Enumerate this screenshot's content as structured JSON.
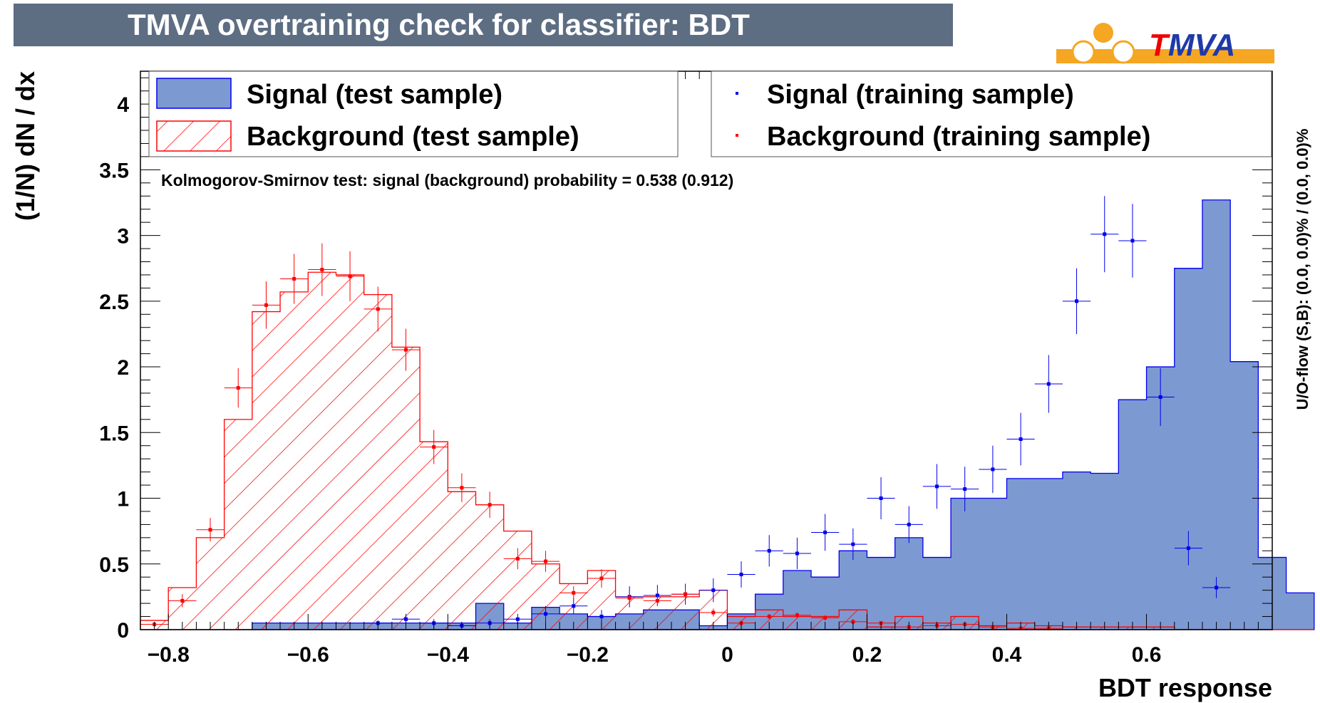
{
  "title": "TMVA overtraining check for classifier: BDT",
  "logo": {
    "prefix": "T",
    "rest": "MVA"
  },
  "colors": {
    "title_bg": "#5d6d82",
    "signal_fill": "#7d99d1",
    "signal_line": "#0000ee",
    "background_line": "#ff0000",
    "logo_orange": "#f5a623",
    "logo_red": "#ee0000",
    "logo_blue": "#1f3aa8"
  },
  "chart_data": {
    "type": "histogram",
    "xlabel": "BDT response",
    "ylabel": "(1/N) dN / dx",
    "right_label": "U/O-flow (S,B): (0.0, 0.0)% / (0.0, 0.0)%",
    "annotation": "Kolmogorov-Smirnov test: signal (background) probability = 0.538 (0.912)",
    "xlim": [
      -0.84,
      0.78
    ],
    "ylim": [
      0,
      4.25
    ],
    "bin_edges_start": -0.84,
    "bin_width": 0.04,
    "x_ticks": [
      -0.8,
      -0.6,
      -0.4,
      -0.2,
      0,
      0.2,
      0.4,
      0.6
    ],
    "x_tick_labels": [
      "−0.8",
      "−0.6",
      "−0.4",
      "−0.2",
      "0",
      "0.2",
      "0.4",
      "0.6"
    ],
    "y_ticks": [
      0,
      0.5,
      1,
      1.5,
      2,
      2.5,
      3,
      3.5,
      4
    ],
    "y_tick_labels": [
      "0",
      "0.5",
      "1",
      "1.5",
      "2",
      "2.5",
      "3",
      "3.5",
      "4"
    ],
    "legend": [
      {
        "label": "Signal (test sample)",
        "style": "signal-fill"
      },
      {
        "label": "Background (test sample)",
        "style": "background-hatch"
      },
      {
        "label": "Signal (training sample)",
        "style": "signal-marker"
      },
      {
        "label": "Background (training sample)",
        "style": "background-marker"
      }
    ],
    "series": [
      {
        "name": "Signal (test sample)",
        "kind": "hist",
        "values": [
          0,
          0,
          0,
          0,
          0.05,
          0.05,
          0.05,
          0.05,
          0.05,
          0.05,
          0.05,
          0.05,
          0.2,
          0.05,
          0.17,
          0.12,
          0.1,
          0.12,
          0.15,
          0.15,
          0.03,
          0.12,
          0.27,
          0.45,
          0.4,
          0.6,
          0.55,
          0.7,
          0.55,
          1.0,
          1.0,
          1.15,
          1.15,
          1.2,
          1.19,
          1.75,
          2.0,
          2.75,
          3.27,
          2.04,
          0.55,
          0.28
        ]
      },
      {
        "name": "Background (test sample)",
        "kind": "hist",
        "values": [
          0.07,
          0.32,
          0.7,
          1.6,
          2.42,
          2.57,
          2.72,
          2.7,
          2.55,
          2.15,
          1.43,
          1.05,
          0.95,
          0.75,
          0.5,
          0.35,
          0.45,
          0.25,
          0.25,
          0.25,
          0.3,
          0.1,
          0.15,
          0.1,
          0.1,
          0.15,
          0.02,
          0.1,
          0.05,
          0.1,
          0.03,
          0.05,
          0.03,
          0.02,
          0.02,
          0.02,
          0.02,
          0,
          0,
          0,
          0,
          0
        ]
      },
      {
        "name": "Signal (training sample)",
        "kind": "points",
        "values": [
          null,
          null,
          null,
          null,
          null,
          null,
          null,
          null,
          0.05,
          0.08,
          0.05,
          0.03,
          0.05,
          0.08,
          0.12,
          0.18,
          0.1,
          0.25,
          0.26,
          0.27,
          0.3,
          0.42,
          0.6,
          0.58,
          0.74,
          0.65,
          1.0,
          0.8,
          1.09,
          1.07,
          1.22,
          1.45,
          1.87,
          2.5,
          3.01,
          2.96,
          1.77,
          0.62,
          0.32,
          null,
          null,
          null
        ],
        "errors": [
          null,
          null,
          null,
          null,
          null,
          null,
          null,
          null,
          0.02,
          0.04,
          0.03,
          0.02,
          0.03,
          0.04,
          0.06,
          0.06,
          0.05,
          0.08,
          0.08,
          0.08,
          0.09,
          0.1,
          0.12,
          0.12,
          0.14,
          0.12,
          0.16,
          0.14,
          0.17,
          0.17,
          0.18,
          0.2,
          0.22,
          0.25,
          0.29,
          0.28,
          0.22,
          0.13,
          0.08,
          null,
          null,
          null
        ]
      },
      {
        "name": "Background (training sample)",
        "kind": "points",
        "values": [
          0.04,
          0.22,
          0.76,
          1.84,
          2.47,
          2.67,
          2.74,
          2.69,
          2.44,
          2.13,
          1.39,
          1.08,
          0.95,
          0.54,
          0.52,
          0.28,
          0.39,
          0.24,
          0.22,
          0.27,
          0.13,
          0.05,
          0.1,
          0.11,
          0.09,
          0.06,
          0.05,
          0.02,
          0.03,
          0.04,
          0.02,
          0.01,
          0.01,
          null,
          null,
          null,
          null,
          null,
          null,
          null,
          null,
          null
        ],
        "errors": [
          0.02,
          0.05,
          0.09,
          0.15,
          0.18,
          0.19,
          0.2,
          0.19,
          0.17,
          0.16,
          0.13,
          0.11,
          0.1,
          0.08,
          0.08,
          0.05,
          0.07,
          0.04,
          0.04,
          0.04,
          0.03,
          0.02,
          0.02,
          0.02,
          0.02,
          0.02,
          0.01,
          0.01,
          0.01,
          0.01,
          0.01,
          0.01,
          0.01,
          null,
          null,
          null,
          null,
          null,
          null,
          null,
          null,
          null
        ]
      }
    ]
  }
}
